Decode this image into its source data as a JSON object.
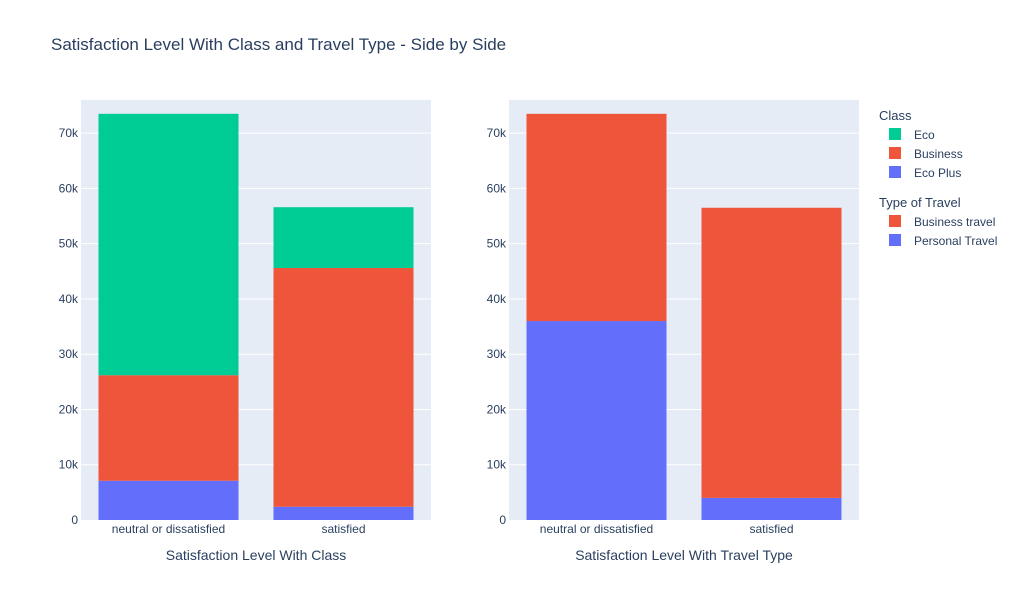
{
  "title": "Satisfaction Level With Class and Travel Type - Side by Side",
  "legend_groups": [
    {
      "title": "Class",
      "items": [
        {
          "label": "Eco",
          "color": "#00cc96"
        },
        {
          "label": "Business",
          "color": "#ef553b"
        },
        {
          "label": "Eco Plus",
          "color": "#636efa"
        }
      ]
    },
    {
      "title": "Type of Travel",
      "items": [
        {
          "label": "Business travel",
          "color": "#ef553b"
        },
        {
          "label": "Personal Travel",
          "color": "#636efa"
        }
      ]
    }
  ],
  "chart_data": [
    {
      "type": "bar",
      "barmode": "stack",
      "xlabel": "Satisfaction Level With Class",
      "ylabel": "",
      "categories": [
        "neutral or dissatisfied",
        "satisfied"
      ],
      "ylim": [
        0,
        76000
      ],
      "yticks": [
        0,
        10000,
        20000,
        30000,
        40000,
        50000,
        60000,
        70000
      ],
      "ytick_labels": [
        "0",
        "10k",
        "20k",
        "30k",
        "40k",
        "50k",
        "60k",
        "70k"
      ],
      "series": [
        {
          "name": "Eco Plus",
          "color": "#636efa",
          "values": [
            7100,
            2400
          ]
        },
        {
          "name": "Business",
          "color": "#ef553b",
          "values": [
            19100,
            43200
          ]
        },
        {
          "name": "Eco",
          "color": "#00cc96",
          "values": [
            47300,
            11000
          ]
        }
      ]
    },
    {
      "type": "bar",
      "barmode": "stack",
      "xlabel": "Satisfaction Level With Travel Type",
      "ylabel": "",
      "categories": [
        "neutral or dissatisfied",
        "satisfied"
      ],
      "ylim": [
        0,
        76000
      ],
      "yticks": [
        0,
        10000,
        20000,
        30000,
        40000,
        50000,
        60000,
        70000
      ],
      "ytick_labels": [
        "0",
        "10k",
        "20k",
        "30k",
        "40k",
        "50k",
        "60k",
        "70k"
      ],
      "series": [
        {
          "name": "Personal Travel",
          "color": "#636efa",
          "values": [
            36000,
            4000
          ]
        },
        {
          "name": "Business travel",
          "color": "#ef553b",
          "values": [
            37500,
            52500
          ]
        }
      ]
    }
  ]
}
